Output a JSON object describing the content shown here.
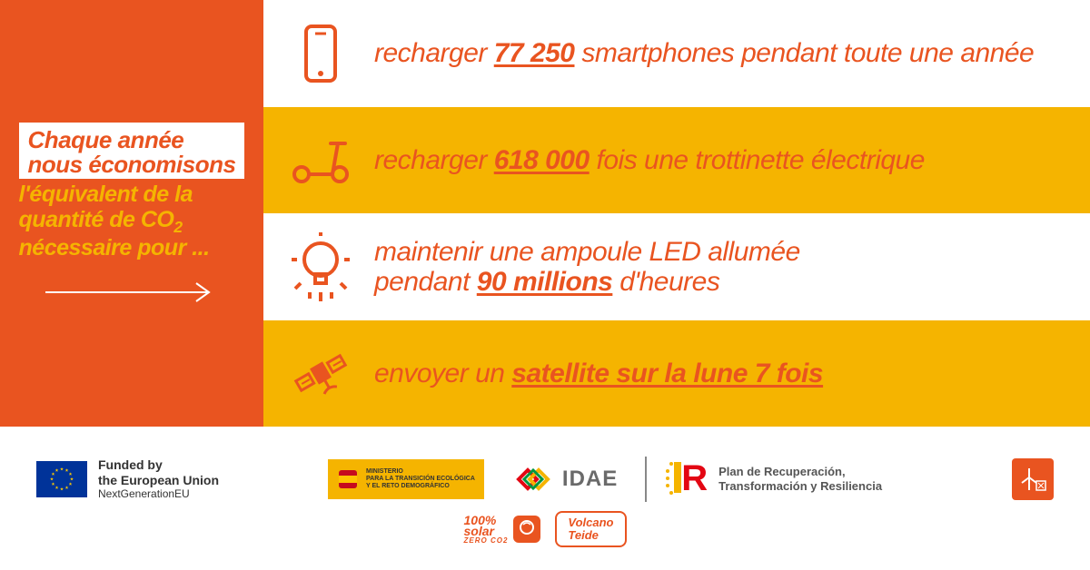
{
  "colors": {
    "orange": "#e95420",
    "yellow": "#f5b400",
    "white": "#ffffff",
    "eu_blue": "#003399",
    "eu_gold": "#ffcc00",
    "red": "#e30613",
    "grey": "#6a6a6a"
  },
  "left_panel": {
    "line1": "Chaque année",
    "line2": "nous économisons",
    "sub_html": "l'équivalent de la<br>quantité de CO<sub>2</sub><br>nécessaire pour ..."
  },
  "stripes": [
    {
      "bg": "white",
      "icon": "phone-icon",
      "text_pre": "recharger ",
      "bold": "77 250",
      "text_post": " smartphones pendant toute une année"
    },
    {
      "bg": "yellow",
      "icon": "scooter-icon",
      "text_pre": "recharger ",
      "bold": "618 000",
      "text_post": " fois une trottinette électrique"
    },
    {
      "bg": "white",
      "icon": "bulb-icon",
      "text_pre": "maintenir une ampoule LED allumée pendant ",
      "bold": "90 millions",
      "text_post": " d'heures",
      "multiline": true
    },
    {
      "bg": "yellow",
      "icon": "satellite-icon",
      "text_pre": "envoyer un ",
      "bold": "satellite sur la lune 7 fois",
      "text_post": ""
    }
  ],
  "footer": {
    "eu": {
      "l1": "Funded by",
      "l2": "the European Union",
      "l3": "NextGenerationEU"
    },
    "ministerio": "MINISTERIO\nPARA LA TRANSICIÓN ECOLÓGICA\nY EL RETO DEMOGRÁFICO",
    "idae": "IDAE",
    "plan": "Plan de Recuperación,\nTransformación y Resiliencia",
    "solar_l1": "100%",
    "solar_l2": "solar",
    "solar_l3": "ZERO CO2",
    "volcano": "Volcano\nTeide"
  }
}
